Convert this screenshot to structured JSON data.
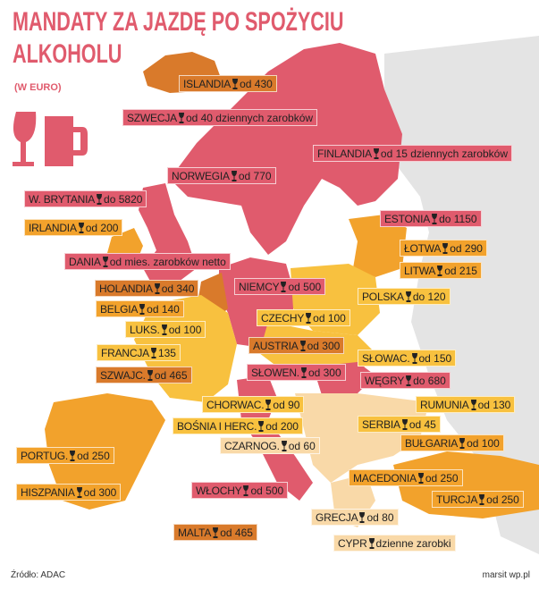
{
  "title_lines": [
    "MANDATY ZA JAZDĘ PO SPOŻYCIU",
    "ALKOHOLU"
  ],
  "subtitle": "(W EURO)",
  "source": "Źródło: ADAC",
  "credit": "marsit wp.pl",
  "countries": [
    {
      "name": "ISLANDIA",
      "fine": "od 430",
      "color": "#d97a2b"
    },
    {
      "name": "SZWECJA",
      "fine": "od 40 dziennych zarobków",
      "color": "#e05b6d"
    },
    {
      "name": "FINLANDIA",
      "fine": "od 15 dziennych zarobków",
      "color": "#e05b6d"
    },
    {
      "name": "NORWEGIA",
      "fine": "od 770",
      "color": "#e05b6d"
    },
    {
      "name": "W. BRYTANIA",
      "fine": "do 5820",
      "color": "#e05b6d"
    },
    {
      "name": "IRLANDIA",
      "fine": "od 200",
      "color": "#f2a22c"
    },
    {
      "name": "DANIA",
      "fine": "od mies. zarobków netto",
      "color": "#e05b6d"
    },
    {
      "name": "ESTONIA",
      "fine": "do 1150",
      "color": "#e05b6d"
    },
    {
      "name": "ŁOTWA",
      "fine": "od 290",
      "color": "#f2a22c"
    },
    {
      "name": "LITWA",
      "fine": "od 215",
      "color": "#f2a22c"
    },
    {
      "name": "HOLANDIA",
      "fine": "od 340",
      "color": "#d97a2b"
    },
    {
      "name": "NIEMCY",
      "fine": "od 500",
      "color": "#e05b6d"
    },
    {
      "name": "POLSKA",
      "fine": "do 120",
      "color": "#f8c13f"
    },
    {
      "name": "BELGIA",
      "fine": "od 140",
      "color": "#f2a22c"
    },
    {
      "name": "LUKS.",
      "fine": "od 100",
      "color": "#f8c13f"
    },
    {
      "name": "CZECHY",
      "fine": "od 100",
      "color": "#f8c13f"
    },
    {
      "name": "FRANCJA",
      "fine": "135",
      "color": "#f8c13f"
    },
    {
      "name": "AUSTRIA",
      "fine": "od 300",
      "color": "#d97a2b"
    },
    {
      "name": "SZWAJC.",
      "fine": "od 465",
      "color": "#d97a2b"
    },
    {
      "name": "SŁOWEN.",
      "fine": "od 300",
      "color": "#e05b6d"
    },
    {
      "name": "SŁOWAC.",
      "fine": "od 150",
      "color": "#f8c13f"
    },
    {
      "name": "WĘGRY",
      "fine": "do 680",
      "color": "#e05b6d"
    },
    {
      "name": "CHORWAC.",
      "fine": "od 90",
      "color": "#f8c13f"
    },
    {
      "name": "RUMUNIA",
      "fine": "od 130",
      "color": "#f8c13f"
    },
    {
      "name": "BOŚNIA I HERC.",
      "fine": "od 200",
      "color": "#f8c13f"
    },
    {
      "name": "SERBIA",
      "fine": "od 45",
      "color": "#f8c13f"
    },
    {
      "name": "CZARNOG.",
      "fine": "od 60",
      "color": "#f9d9a8"
    },
    {
      "name": "BUŁGARIA",
      "fine": "od 100",
      "color": "#f2a22c"
    },
    {
      "name": "PORTUG.",
      "fine": "od 250",
      "color": "#f2a22c"
    },
    {
      "name": "MACEDONIA",
      "fine": "od 250",
      "color": "#f2a22c"
    },
    {
      "name": "HISZPANIA",
      "fine": "od 300",
      "color": "#f2a22c"
    },
    {
      "name": "WŁOCHY",
      "fine": "od 500",
      "color": "#e05b6d"
    },
    {
      "name": "TURCJA",
      "fine": "od 250",
      "color": "#f2a22c"
    },
    {
      "name": "GRECJA",
      "fine": "od 80",
      "color": "#f9d9a8"
    },
    {
      "name": "MALTA",
      "fine": "od 465",
      "color": "#d97a2b"
    },
    {
      "name": "CYPR",
      "fine": "dzienne zarobki",
      "color": "#f9d9a8"
    }
  ]
}
